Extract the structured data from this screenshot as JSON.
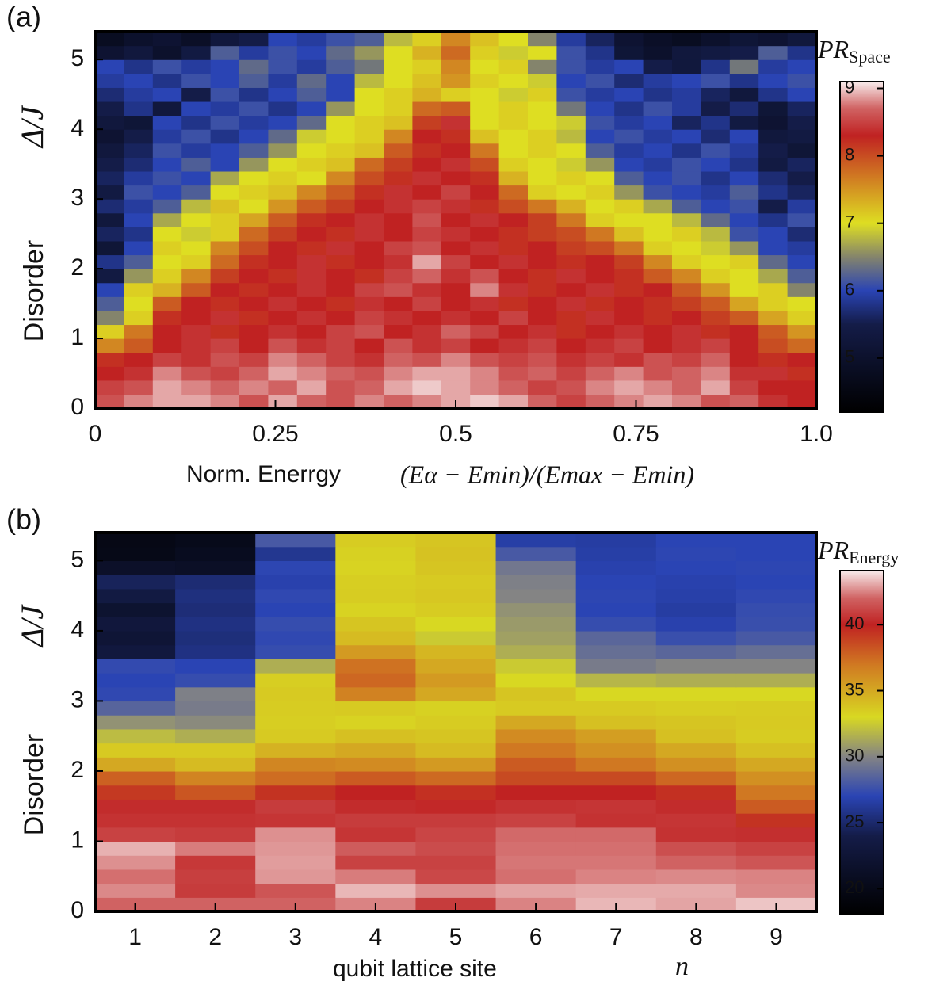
{
  "chart_data": [
    {
      "type": "heatmap",
      "panel_label": "(a)",
      "xlabel": "Norm. Enerrgy",
      "xlabel_math": "(Eα − Emin)/(Emax − Emin)",
      "ylabel": "Disorder",
      "ylabel_math": "Δ/J",
      "colorbar_label": "PR",
      "colorbar_label_sub": "Space",
      "xlim": [
        0,
        1
      ],
      "ylim": [
        0,
        5.4
      ],
      "xticks": [
        0,
        0.25,
        0.5,
        0.75,
        {
          "value": 1,
          "label": "1.0"
        }
      ],
      "yticks": [
        0,
        1,
        2,
        3,
        4,
        5
      ],
      "zlim": [
        4.2,
        9.1
      ],
      "zticks": [
        5,
        6,
        7,
        8,
        9
      ],
      "colormap": [
        [
          4.2,
          "#000000"
        ],
        [
          5.5,
          "#141c48"
        ],
        [
          6.0,
          "#2a44b4"
        ],
        [
          6.5,
          "#84846c"
        ],
        [
          7.0,
          "#dede22"
        ],
        [
          7.7,
          "#d07822"
        ],
        [
          8.3,
          "#c02222"
        ],
        [
          8.7,
          "#d06262"
        ],
        [
          9.1,
          "#f8ecec"
        ]
      ],
      "values": [
        [
          8.6,
          8.8,
          8.9,
          8.9,
          8.8,
          8.6,
          8.9,
          8.7,
          8.6,
          8.8,
          8.7,
          8.8,
          8.9,
          9.0,
          8.9,
          8.7,
          8.5,
          8.7,
          8.8,
          8.9,
          8.8,
          8.6,
          8.7,
          8.4,
          8.3
        ],
        [
          8.5,
          8.6,
          8.9,
          8.8,
          8.7,
          8.8,
          8.7,
          8.9,
          8.6,
          8.7,
          8.9,
          9.0,
          8.9,
          8.8,
          8.7,
          8.5,
          8.6,
          8.8,
          8.9,
          8.8,
          8.7,
          8.9,
          8.5,
          8.3,
          8.3
        ],
        [
          8.3,
          8.4,
          8.8,
          8.6,
          8.5,
          8.7,
          8.9,
          8.8,
          8.7,
          8.6,
          8.8,
          8.9,
          8.9,
          8.8,
          8.6,
          8.7,
          8.5,
          8.7,
          8.8,
          8.6,
          8.7,
          8.8,
          8.4,
          8.4,
          8.2
        ],
        [
          8.2,
          8.3,
          8.5,
          8.4,
          8.6,
          8.5,
          8.8,
          8.7,
          8.5,
          8.4,
          8.7,
          8.6,
          8.8,
          8.6,
          8.5,
          8.6,
          8.4,
          8.5,
          8.4,
          8.6,
          8.5,
          8.7,
          8.3,
          8.2,
          8.3
        ],
        [
          7.6,
          7.9,
          8.3,
          8.4,
          8.5,
          8.3,
          8.6,
          8.4,
          8.5,
          8.3,
          8.6,
          8.4,
          8.5,
          8.3,
          8.4,
          8.5,
          8.3,
          8.4,
          8.5,
          8.3,
          8.4,
          8.5,
          8.3,
          8.0,
          7.8
        ],
        [
          7.1,
          7.7,
          8.3,
          8.4,
          8.2,
          8.3,
          8.4,
          8.3,
          8.5,
          8.6,
          8.3,
          8.4,
          8.7,
          8.5,
          8.3,
          8.4,
          8.2,
          8.3,
          8.4,
          8.3,
          8.4,
          8.2,
          8.3,
          7.9,
          7.5
        ],
        [
          6.5,
          7.1,
          8.2,
          8.3,
          8.4,
          8.2,
          8.3,
          8.4,
          8.3,
          8.5,
          8.4,
          8.3,
          8.4,
          8.3,
          8.5,
          8.3,
          8.2,
          8.4,
          8.3,
          8.2,
          8.3,
          8.1,
          7.9,
          7.4,
          7.1
        ],
        [
          6.2,
          7.0,
          7.9,
          8.3,
          8.2,
          8.3,
          8.4,
          8.3,
          8.2,
          8.4,
          8.3,
          8.5,
          8.3,
          8.4,
          8.2,
          8.3,
          8.4,
          8.2,
          8.3,
          8.2,
          8.1,
          7.9,
          7.4,
          7.1,
          7.0
        ],
        [
          6.0,
          7.1,
          7.3,
          7.9,
          8.3,
          8.2,
          8.3,
          8.4,
          8.3,
          8.5,
          8.6,
          8.4,
          8.3,
          8.8,
          8.4,
          8.2,
          8.3,
          8.4,
          8.2,
          8.3,
          7.9,
          7.5,
          7.0,
          7.1,
          6.5
        ],
        [
          5.4,
          6.6,
          7.1,
          7.6,
          8.1,
          8.3,
          8.2,
          8.4,
          8.3,
          8.2,
          8.5,
          8.7,
          8.4,
          8.6,
          8.3,
          8.2,
          8.4,
          8.3,
          8.2,
          7.9,
          7.6,
          7.1,
          7.0,
          6.7,
          6.2
        ],
        [
          5.8,
          6.2,
          7.0,
          7.1,
          7.8,
          8.2,
          8.3,
          8.4,
          8.2,
          8.3,
          8.4,
          8.9,
          8.5,
          8.3,
          8.4,
          8.3,
          8.2,
          8.3,
          8.1,
          7.6,
          7.1,
          7.0,
          7.1,
          6.3,
          6.0
        ],
        [
          5.2,
          6.0,
          7.1,
          7.0,
          7.6,
          8.0,
          8.3,
          8.2,
          8.4,
          8.3,
          8.5,
          8.6,
          8.3,
          8.4,
          8.2,
          8.3,
          8.1,
          8.0,
          7.7,
          7.1,
          7.0,
          6.9,
          6.6,
          6.0,
          5.9
        ],
        [
          5.6,
          5.8,
          7.0,
          6.9,
          7.1,
          7.8,
          8.1,
          8.3,
          8.2,
          8.4,
          8.3,
          8.5,
          8.4,
          8.3,
          8.2,
          8.1,
          8.0,
          7.7,
          7.2,
          7.0,
          7.1,
          6.8,
          6.1,
          6.0,
          5.7
        ],
        [
          5.3,
          6.0,
          6.7,
          7.0,
          7.1,
          7.4,
          7.9,
          8.2,
          8.3,
          8.4,
          8.3,
          8.6,
          8.3,
          8.4,
          8.3,
          8.1,
          7.7,
          7.1,
          7.0,
          7.0,
          6.8,
          6.3,
          6.0,
          5.8,
          6.1
        ],
        [
          5.7,
          5.9,
          6.2,
          6.8,
          7.2,
          7.0,
          7.5,
          7.9,
          8.1,
          8.3,
          8.4,
          8.5,
          8.4,
          8.2,
          8.0,
          7.7,
          7.3,
          7.0,
          7.1,
          6.7,
          6.2,
          6.0,
          6.1,
          5.5,
          5.9
        ],
        [
          5.4,
          6.1,
          6.0,
          6.2,
          7.0,
          7.1,
          7.2,
          7.6,
          7.9,
          8.2,
          8.4,
          8.3,
          8.5,
          8.3,
          7.8,
          7.1,
          7.0,
          7.1,
          6.6,
          6.1,
          6.0,
          5.9,
          6.2,
          5.8,
          5.6
        ],
        [
          5.6,
          5.9,
          6.1,
          6.0,
          6.7,
          7.0,
          7.1,
          7.0,
          7.6,
          8.0,
          8.2,
          8.4,
          8.3,
          8.2,
          7.3,
          7.0,
          7.1,
          7.0,
          6.2,
          6.0,
          6.1,
          5.8,
          6.0,
          5.7,
          5.5
        ],
        [
          5.5,
          5.7,
          6.0,
          6.2,
          6.0,
          6.6,
          7.0,
          7.1,
          7.2,
          7.8,
          8.1,
          8.3,
          8.4,
          8.0,
          7.1,
          7.0,
          6.9,
          6.6,
          6.0,
          5.9,
          6.1,
          6.0,
          5.8,
          5.4,
          5.6
        ],
        [
          5.3,
          5.6,
          6.1,
          5.9,
          6.0,
          6.2,
          6.6,
          7.0,
          7.1,
          7.2,
          7.9,
          8.2,
          8.3,
          7.7,
          7.0,
          7.1,
          7.0,
          6.2,
          5.9,
          6.0,
          5.8,
          6.1,
          5.9,
          5.5,
          5.2
        ],
        [
          5.1,
          5.5,
          5.9,
          6.1,
          5.8,
          6.0,
          6.3,
          6.9,
          7.0,
          7.1,
          7.6,
          8.3,
          8.2,
          7.2,
          7.0,
          7.1,
          6.8,
          6.0,
          6.1,
          5.9,
          6.0,
          5.7,
          6.0,
          5.3,
          5.4
        ],
        [
          5.3,
          5.2,
          6.0,
          5.8,
          6.1,
          5.9,
          6.0,
          6.3,
          7.0,
          7.1,
          7.2,
          8.1,
          8.4,
          7.0,
          7.1,
          7.0,
          6.9,
          6.1,
          5.9,
          6.0,
          5.6,
          5.8,
          5.4,
          5.1,
          5.5
        ],
        [
          5.5,
          5.8,
          5.3,
          6.0,
          5.9,
          6.1,
          5.8,
          6.0,
          6.6,
          7.0,
          7.1,
          7.8,
          7.9,
          7.0,
          7.1,
          7.0,
          6.4,
          6.0,
          5.8,
          6.1,
          5.9,
          5.5,
          5.7,
          5.2,
          5.6
        ],
        [
          5.7,
          5.9,
          6.0,
          5.5,
          6.1,
          5.8,
          6.0,
          6.2,
          6.0,
          7.0,
          7.1,
          7.3,
          7.1,
          7.0,
          6.9,
          7.1,
          6.1,
          5.9,
          6.0,
          5.8,
          5.9,
          5.6,
          5.3,
          5.8,
          6.0
        ],
        [
          5.9,
          6.0,
          5.8,
          6.1,
          6.0,
          6.2,
          5.9,
          6.3,
          6.0,
          6.8,
          7.0,
          7.2,
          7.5,
          7.1,
          7.0,
          6.9,
          6.0,
          6.1,
          5.7,
          5.9,
          6.0,
          6.1,
          5.8,
          6.0,
          6.1
        ],
        [
          6.0,
          5.8,
          6.1,
          5.9,
          6.0,
          6.3,
          6.1,
          5.9,
          6.2,
          6.4,
          7.0,
          7.1,
          7.6,
          7.0,
          7.1,
          6.5,
          6.1,
          5.9,
          6.0,
          5.5,
          5.3,
          5.8,
          6.4,
          5.9,
          6.0
        ],
        [
          5.1,
          5.3,
          5.0,
          5.4,
          6.2,
          5.9,
          6.1,
          6.0,
          6.3,
          6.6,
          7.0,
          7.3,
          7.8,
          7.1,
          6.9,
          7.0,
          6.1,
          5.8,
          5.2,
          5.0,
          5.3,
          5.4,
          5.5,
          6.2,
          5.8
        ],
        [
          4.8,
          5.0,
          5.1,
          4.9,
          5.3,
          5.5,
          6.0,
          5.9,
          6.1,
          6.2,
          6.8,
          7.1,
          7.6,
          7.2,
          7.0,
          6.5,
          5.9,
          5.6,
          5.1,
          4.9,
          4.8,
          5.0,
          5.2,
          5.1,
          5.3
        ]
      ]
    },
    {
      "type": "heatmap",
      "panel_label": "(b)",
      "xlabel": "qubit lattice site",
      "xlabel_math": "n",
      "ylabel": "Disorder",
      "ylabel_math": "Δ/J",
      "colorbar_label": "PR",
      "colorbar_label_sub": "Energy",
      "xlim": [
        0.5,
        9.5
      ],
      "ylim": [
        0,
        5.4
      ],
      "xticks": [
        1,
        2,
        3,
        4,
        5,
        6,
        7,
        8,
        9
      ],
      "yticks": [
        0,
        1,
        2,
        3,
        4,
        5
      ],
      "zlim": [
        18.1,
        44.1
      ],
      "zticks": [
        20,
        25,
        30,
        35,
        40
      ],
      "colormap": [
        [
          18.1,
          "#000000"
        ],
        [
          24,
          "#141c48"
        ],
        [
          27,
          "#2a44b4"
        ],
        [
          30,
          "#848484"
        ],
        [
          33,
          "#d8d822"
        ],
        [
          37,
          "#d07822"
        ],
        [
          40,
          "#c02222"
        ],
        [
          42,
          "#d06262"
        ],
        [
          44.1,
          "#f8ecec"
        ]
      ],
      "values": [
        [
          42.0,
          42.0,
          42.0,
          42.5,
          40.8,
          42.5,
          43.3,
          43.0,
          43.5
        ],
        [
          42.6,
          40.8,
          41.6,
          43.3,
          42.7,
          43.0,
          43.1,
          43.1,
          42.6
        ],
        [
          42.2,
          40.9,
          42.8,
          42.4,
          41.2,
          42.2,
          42.5,
          42.6,
          42.5
        ],
        [
          42.7,
          40.7,
          42.9,
          41.0,
          41.0,
          42.3,
          42.3,
          42.0,
          41.6
        ],
        [
          43.2,
          42.4,
          42.8,
          41.8,
          41.3,
          42.2,
          42.2,
          41.4,
          41.0
        ],
        [
          41.0,
          40.8,
          42.7,
          40.6,
          41.1,
          42.1,
          42.1,
          40.5,
          40.4
        ],
        [
          40.5,
          40.5,
          40.6,
          40.8,
          40.8,
          41.0,
          40.5,
          40.6,
          39.4
        ],
        [
          40.3,
          40.3,
          40.8,
          40.3,
          40.2,
          40.5,
          40.6,
          40.3,
          38.0
        ],
        [
          39.2,
          38.2,
          39.4,
          40.0,
          39.5,
          40.0,
          40.0,
          39.5,
          37.0
        ],
        [
          37.8,
          36.5,
          37.4,
          38.0,
          37.5,
          38.6,
          38.6,
          37.6,
          36.0
        ],
        [
          35.0,
          34.2,
          36.4,
          36.2,
          35.6,
          38.0,
          37.0,
          36.0,
          35.0
        ],
        [
          33.6,
          33.6,
          34.6,
          35.0,
          34.2,
          37.0,
          36.0,
          35.0,
          34.0
        ],
        [
          32.0,
          31.5,
          33.6,
          34.0,
          33.8,
          36.2,
          35.4,
          34.0,
          33.5
        ],
        [
          30.5,
          30.2,
          33.4,
          33.2,
          33.5,
          35.0,
          34.0,
          33.8,
          33.6
        ],
        [
          28.5,
          29.6,
          33.5,
          33.6,
          33.3,
          33.6,
          33.6,
          33.4,
          33.5
        ],
        [
          27.2,
          29.8,
          33.6,
          36.6,
          35.0,
          33.8,
          33.0,
          33.0,
          33.0
        ],
        [
          27.0,
          27.4,
          33.4,
          37.6,
          35.6,
          33.0,
          31.8,
          31.5,
          31.5
        ],
        [
          27.3,
          27.0,
          31.5,
          37.2,
          35.0,
          32.5,
          29.6,
          30.0,
          30.0
        ],
        [
          23.2,
          25.6,
          27.4,
          35.6,
          34.4,
          31.5,
          29.0,
          28.6,
          29.0
        ],
        [
          22.5,
          25.4,
          27.2,
          34.2,
          32.5,
          31.0,
          28.6,
          27.5,
          28.0
        ],
        [
          23.0,
          25.6,
          27.4,
          33.8,
          33.0,
          30.8,
          27.4,
          26.8,
          27.5
        ],
        [
          22.0,
          25.3,
          27.0,
          33.2,
          33.5,
          30.5,
          27.0,
          26.5,
          27.4
        ],
        [
          23.5,
          25.5,
          27.2,
          33.5,
          33.7,
          30.0,
          27.1,
          26.7,
          27.2
        ],
        [
          24.5,
          25.2,
          26.8,
          33.4,
          33.6,
          29.8,
          27.0,
          26.8,
          27.0
        ],
        [
          21.5,
          21.2,
          27.1,
          33.2,
          33.8,
          29.4,
          26.8,
          27.0,
          27.1
        ],
        [
          20.0,
          20.6,
          26.0,
          33.3,
          33.9,
          28.0,
          26.6,
          27.1,
          27.0
        ],
        [
          19.8,
          20.2,
          28.0,
          33.5,
          33.8,
          26.6,
          26.5,
          27.0,
          27.0
        ]
      ]
    }
  ]
}
